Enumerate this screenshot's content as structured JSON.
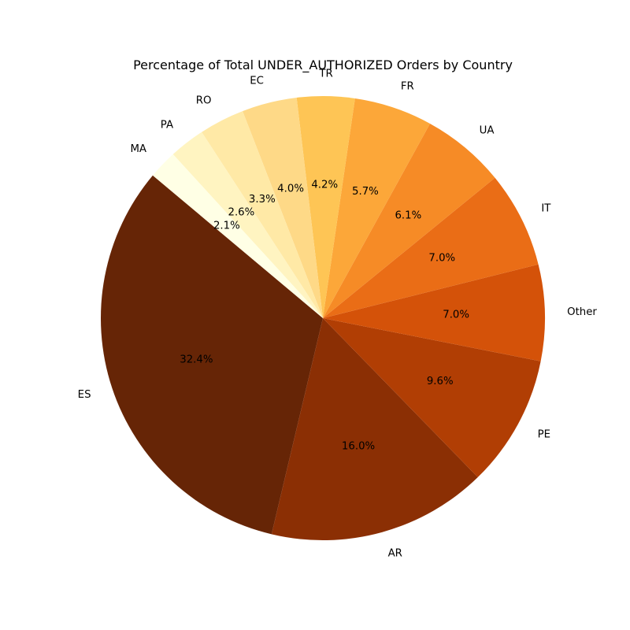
{
  "chart_data": {
    "type": "pie",
    "title": "Percentage of Total UNDER_AUTHORIZED Orders by Country",
    "slices": [
      {
        "label": "ES",
        "value": 32.4,
        "pct_label": "32.4%",
        "color": "#662506"
      },
      {
        "label": "AR",
        "value": 16.0,
        "pct_label": "16.0%",
        "color": "#8b2f04"
      },
      {
        "label": "PE",
        "value": 9.6,
        "pct_label": "9.6%",
        "color": "#b13e04"
      },
      {
        "label": "Other",
        "value": 7.0,
        "pct_label": "7.0%",
        "color": "#d45209"
      },
      {
        "label": "IT",
        "value": 7.0,
        "pct_label": "7.0%",
        "color": "#ea6d16"
      },
      {
        "label": "UA",
        "value": 6.1,
        "pct_label": "6.1%",
        "color": "#f68b26"
      },
      {
        "label": "FR",
        "value": 5.7,
        "pct_label": "5.7%",
        "color": "#fca739"
      },
      {
        "label": "TR",
        "value": 4.2,
        "pct_label": "4.2%",
        "color": "#fec555"
      },
      {
        "label": "EC",
        "value": 4.0,
        "pct_label": "4.0%",
        "color": "#fed987"
      },
      {
        "label": "RO",
        "value": 3.3,
        "pct_label": "3.3%",
        "color": "#ffe9a6"
      },
      {
        "label": "PA",
        "value": 2.6,
        "pct_label": "2.6%",
        "color": "#fff4c1"
      },
      {
        "label": "MA",
        "value": 2.1,
        "pct_label": "2.1%",
        "color": "#ffffe5"
      }
    ],
    "start_angle_deg": 140,
    "direction": "counterclockwise"
  }
}
